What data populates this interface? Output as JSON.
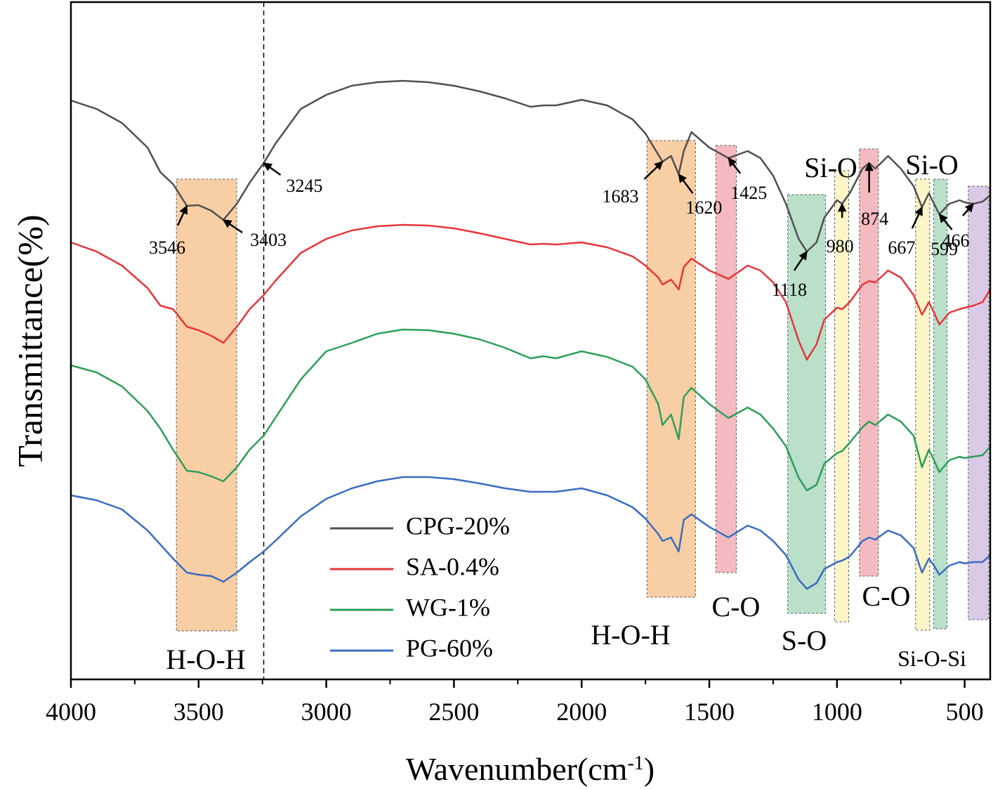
{
  "chart_data": {
    "type": "line",
    "y_label": "Transmittance(%)",
    "x_label": [
      "Wavenumber(cm",
      "-1",
      ")"
    ],
    "xlim": [
      4000,
      400
    ],
    "ylim": [
      0,
      964
    ],
    "xticks": [
      4000,
      3500,
      3000,
      2500,
      2000,
      1500,
      1000,
      500
    ],
    "xminor": [
      3750,
      3250,
      2750,
      2250,
      1750,
      1250,
      750
    ],
    "x": [
      4000,
      3900,
      3800,
      3700,
      3650,
      3600,
      3546,
      3500,
      3450,
      3403,
      3350,
      3300,
      3245,
      3200,
      3100,
      3000,
      2900,
      2800,
      2700,
      2600,
      2500,
      2400,
      2300,
      2200,
      2150,
      2100,
      2000,
      1900,
      1800,
      1750,
      1700,
      1683,
      1650,
      1620,
      1600,
      1570,
      1500,
      1425,
      1350,
      1300,
      1250,
      1200,
      1150,
      1118,
      1080,
      1050,
      1000,
      980,
      950,
      900,
      874,
      850,
      800,
      750,
      700,
      667,
      640,
      620,
      599,
      560,
      520,
      500,
      466,
      430,
      400
    ],
    "series": [
      {
        "name": "CPG-20%",
        "color": "#505050",
        "values": [
          824,
          812,
          792,
          757,
          722,
          705,
          674,
          675,
          667,
          654,
          677,
          707,
          735,
          762,
          812,
          832,
          845,
          850,
          852,
          850,
          845,
          837,
          827,
          815,
          817,
          817,
          825,
          817,
          797,
          777,
          747,
          737,
          745,
          719,
          752,
          779,
          757,
          742,
          752,
          742,
          717,
          677,
          627,
          609,
          622,
          657,
          682,
          677,
          692,
          727,
          735,
          727,
          745,
          727,
          702,
          672,
          692,
          677,
          662,
          677,
          682,
          679,
          677,
          680,
          689
        ]
      },
      {
        "name": "SA-0.4%",
        "color": "#e6363b",
        "values": [
          622,
          609,
          589,
          557,
          532,
          527,
          502,
          497,
          489,
          479,
          502,
          527,
          547,
          567,
          607,
          627,
          639,
          645,
          647,
          646,
          642,
          635,
          627,
          619,
          620,
          619,
          622,
          615,
          602,
          589,
          572,
          562,
          569,
          555,
          587,
          599,
          582,
          570,
          589,
          582,
          565,
          537,
          482,
          455,
          477,
          512,
          529,
          527,
          537,
          562,
          567,
          565,
          582,
          572,
          547,
          519,
          537,
          522,
          505,
          522,
          527,
          529,
          532,
          537,
          555
        ]
      },
      {
        "name": "WG-1%",
        "color": "#2e9e5a",
        "values": [
          447,
          437,
          417,
          382,
          357,
          327,
          297,
          295,
          289,
          282,
          302,
          327,
          347,
          372,
          427,
          467,
          479,
          492,
          498,
          497,
          492,
          484,
          472,
          457,
          460,
          457,
          467,
          459,
          445,
          427,
          392,
          362,
          377,
          342,
          402,
          415,
          392,
          372,
          387,
          377,
          357,
          332,
          287,
          269,
          277,
          307,
          322,
          325,
          337,
          359,
          367,
          362,
          377,
          367,
          347,
          302,
          327,
          312,
          295,
          312,
          317,
          315,
          317,
          319,
          331
        ]
      },
      {
        "name": "PG-60%",
        "color": "#3a6cc2",
        "values": [
          262,
          255,
          242,
          212,
          192,
          172,
          152,
          149,
          147,
          139,
          152,
          167,
          182,
          197,
          232,
          257,
          272,
          282,
          288,
          288,
          285,
          279,
          272,
          267,
          267,
          267,
          272,
          262,
          245,
          229,
          207,
          197,
          202,
          182,
          227,
          235,
          217,
          202,
          219,
          212,
          197,
          177,
          142,
          129,
          137,
          157,
          167,
          169,
          175,
          197,
          202,
          199,
          212,
          205,
          187,
          152,
          172,
          162,
          149,
          162,
          167,
          165,
          167,
          167,
          177
        ]
      }
    ],
    "vline_x": 3245,
    "peaks": [
      3546,
      3403,
      3245,
      1683,
      1620,
      1425,
      1118,
      980,
      874,
      667,
      599,
      466
    ],
    "regions": [
      {
        "x": [
          3587,
          3351
        ],
        "color": "#f6bd85",
        "label": "H-O-H"
      },
      {
        "x": [
          1744,
          1554
        ],
        "color": "#f6bd85",
        "label": "H-O-H"
      },
      {
        "x": [
          1474,
          1394
        ],
        "color": "#f2a3aa",
        "label": "C-O"
      },
      {
        "x": [
          1193,
          1045
        ],
        "color": "#a3d6b7",
        "label": "S-O"
      },
      {
        "x": [
          1009,
          954
        ],
        "color": "#fbf2b4",
        "label": "Si-O"
      },
      {
        "x": [
          912,
          838
        ],
        "color": "#f2a3aa",
        "label": "C-O"
      },
      {
        "x": [
          692,
          637
        ],
        "color": "#fbf2b4",
        "label": "Si-O"
      },
      {
        "x": [
          621,
          569
        ],
        "color": "#a3d6b7"
      },
      {
        "x": [
          486,
          406
        ],
        "color": "#cdb8dc",
        "label": "Si-O-Si"
      }
    ]
  }
}
